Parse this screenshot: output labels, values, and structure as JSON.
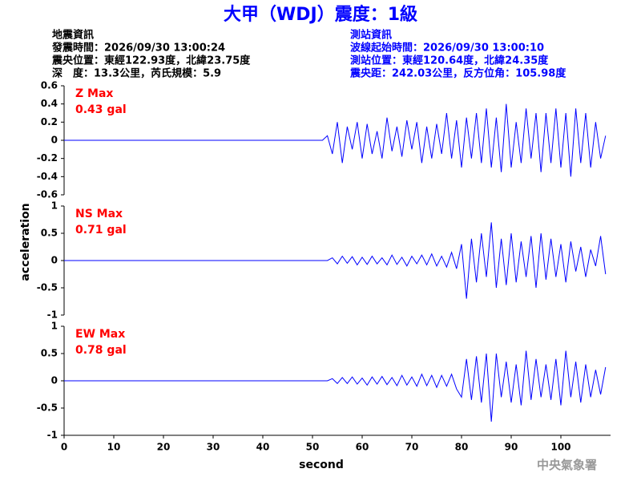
{
  "header": {
    "title": "大甲（WDJ）震度：1級",
    "left": [
      "地震資訊",
      "發震時間：2026/09/30 13:00:24",
      "震央位置：東經122.93度，北緯23.75度",
      "深　度：13.3公里，芮氏規模：5.9"
    ],
    "right": [
      "測站資訊",
      "波線起始時間：2026/09/30 13:00:10",
      "測站位置：東經120.64度，北緯24.35度",
      "震央距：242.03公里，反方位角：105.98度"
    ],
    "watermark": "中央氣象署"
  },
  "chart_data": [
    {
      "type": "line",
      "annotation": [
        "Z Max",
        "0.43 gal"
      ],
      "annotation_color": "#ff0000",
      "x": [
        0,
        1,
        2,
        3,
        4,
        5,
        6,
        7,
        8,
        9,
        10,
        11,
        12,
        13,
        14,
        15,
        16,
        17,
        18,
        19,
        20,
        21,
        22,
        23,
        24,
        25,
        26,
        27,
        28,
        29,
        30,
        31,
        32,
        33,
        34,
        35,
        36,
        37,
        38,
        39,
        40,
        41,
        42,
        43,
        44,
        45,
        46,
        47,
        48,
        49,
        50,
        51,
        52,
        53,
        54,
        55,
        56,
        57,
        58,
        59,
        60,
        61,
        62,
        63,
        64,
        65,
        66,
        67,
        68,
        69,
        70,
        71,
        72,
        73,
        74,
        75,
        76,
        77,
        78,
        79,
        80,
        81,
        82,
        83,
        84,
        85,
        86,
        87,
        88,
        89,
        90,
        91,
        92,
        93,
        94,
        95,
        96,
        97,
        98,
        99,
        100,
        101,
        102,
        103,
        104,
        105,
        106,
        107,
        108,
        109
      ],
      "series": [
        {
          "name": "Z",
          "color": "#0000ff",
          "values": [
            0,
            0,
            0,
            0,
            0,
            0,
            0,
            0,
            0,
            0,
            0,
            0,
            0,
            0,
            0,
            0,
            0,
            0,
            0,
            0,
            0,
            0,
            0,
            0,
            0,
            0,
            0,
            0,
            0,
            0,
            0,
            0,
            0,
            0,
            0,
            0,
            0,
            0,
            0,
            0,
            0,
            0,
            0,
            0,
            0,
            0,
            0,
            0,
            0,
            0,
            0,
            0,
            0,
            0.05,
            -0.15,
            0.2,
            -0.25,
            0.15,
            -0.1,
            0.2,
            -0.2,
            0.18,
            -0.15,
            0.1,
            -0.2,
            0.25,
            -0.12,
            0.15,
            -0.18,
            0.22,
            -0.1,
            0.2,
            -0.25,
            0.15,
            -0.2,
            0.18,
            -0.15,
            0.3,
            -0.2,
            0.22,
            -0.3,
            0.25,
            -0.2,
            0.3,
            -0.25,
            0.35,
            -0.3,
            0.25,
            -0.35,
            0.4,
            -0.3,
            0.2,
            -0.25,
            0.35,
            -0.2,
            0.3,
            -0.35,
            0.3,
            -0.25,
            0.35,
            -0.3,
            0.3,
            -0.4,
            0.35,
            -0.25,
            0.3,
            -0.3,
            0.2,
            -0.2,
            0.05
          ]
        }
      ],
      "xlim": [
        0,
        110
      ],
      "ylim": [
        -0.6,
        0.6
      ],
      "yticks": [
        0.6,
        0.4,
        0.2,
        0,
        -0.2,
        -0.4,
        -0.6
      ]
    },
    {
      "type": "line",
      "annotation": [
        "NS Max",
        "0.71 gal"
      ],
      "annotation_color": "#ff0000",
      "ylabel": "acceleration",
      "x": [
        0,
        1,
        2,
        3,
        4,
        5,
        6,
        7,
        8,
        9,
        10,
        11,
        12,
        13,
        14,
        15,
        16,
        17,
        18,
        19,
        20,
        21,
        22,
        23,
        24,
        25,
        26,
        27,
        28,
        29,
        30,
        31,
        32,
        33,
        34,
        35,
        36,
        37,
        38,
        39,
        40,
        41,
        42,
        43,
        44,
        45,
        46,
        47,
        48,
        49,
        50,
        51,
        52,
        53,
        54,
        55,
        56,
        57,
        58,
        59,
        60,
        61,
        62,
        63,
        64,
        65,
        66,
        67,
        68,
        69,
        70,
        71,
        72,
        73,
        74,
        75,
        76,
        77,
        78,
        79,
        80,
        81,
        82,
        83,
        84,
        85,
        86,
        87,
        88,
        89,
        90,
        91,
        92,
        93,
        94,
        95,
        96,
        97,
        98,
        99,
        100,
        101,
        102,
        103,
        104,
        105,
        106,
        107,
        108,
        109
      ],
      "series": [
        {
          "name": "NS",
          "color": "#0000ff",
          "values": [
            0,
            0,
            0,
            0,
            0,
            0,
            0,
            0,
            0,
            0,
            0,
            0,
            0,
            0,
            0,
            0,
            0,
            0,
            0,
            0,
            0,
            0,
            0,
            0,
            0,
            0,
            0,
            0,
            0,
            0,
            0,
            0,
            0,
            0,
            0,
            0,
            0,
            0,
            0,
            0,
            0,
            0,
            0,
            0,
            0,
            0,
            0,
            0,
            0,
            0,
            0,
            0,
            0,
            0,
            0.05,
            -0.06,
            0.08,
            -0.05,
            0.07,
            -0.08,
            0.06,
            -0.07,
            0.08,
            -0.06,
            0.05,
            -0.08,
            0.1,
            -0.07,
            0.06,
            -0.1,
            0.08,
            -0.06,
            0.1,
            -0.08,
            0.12,
            -0.1,
            0.08,
            -0.12,
            0.15,
            -0.15,
            0.3,
            -0.7,
            0.4,
            -0.4,
            0.5,
            -0.3,
            0.7,
            -0.5,
            0.4,
            -0.45,
            0.5,
            -0.4,
            0.35,
            -0.3,
            0.45,
            -0.5,
            0.5,
            -0.35,
            0.4,
            -0.3,
            0.3,
            -0.4,
            0.35,
            -0.2,
            0.25,
            -0.3,
            0.2,
            -0.1,
            0.45,
            -0.25
          ]
        }
      ],
      "xlim": [
        0,
        110
      ],
      "ylim": [
        -1,
        1
      ],
      "yticks": [
        1,
        0.5,
        0,
        -0.5,
        -1
      ]
    },
    {
      "type": "line",
      "annotation": [
        "EW Max",
        "0.78 gal"
      ],
      "annotation_color": "#ff0000",
      "xlabel": "second",
      "x": [
        0,
        1,
        2,
        3,
        4,
        5,
        6,
        7,
        8,
        9,
        10,
        11,
        12,
        13,
        14,
        15,
        16,
        17,
        18,
        19,
        20,
        21,
        22,
        23,
        24,
        25,
        26,
        27,
        28,
        29,
        30,
        31,
        32,
        33,
        34,
        35,
        36,
        37,
        38,
        39,
        40,
        41,
        42,
        43,
        44,
        45,
        46,
        47,
        48,
        49,
        50,
        51,
        52,
        53,
        54,
        55,
        56,
        57,
        58,
        59,
        60,
        61,
        62,
        63,
        64,
        65,
        66,
        67,
        68,
        69,
        70,
        71,
        72,
        73,
        74,
        75,
        76,
        77,
        78,
        79,
        80,
        81,
        82,
        83,
        84,
        85,
        86,
        87,
        88,
        89,
        90,
        91,
        92,
        93,
        94,
        95,
        96,
        97,
        98,
        99,
        100,
        101,
        102,
        103,
        104,
        105,
        106,
        107,
        108,
        109
      ],
      "series": [
        {
          "name": "EW",
          "color": "#0000ff",
          "values": [
            0,
            0,
            0,
            0,
            0,
            0,
            0,
            0,
            0,
            0,
            0,
            0,
            0,
            0,
            0,
            0,
            0,
            0,
            0,
            0,
            0,
            0,
            0,
            0,
            0,
            0,
            0,
            0,
            0,
            0,
            0,
            0,
            0,
            0,
            0,
            0,
            0,
            0,
            0,
            0,
            0,
            0,
            0,
            0,
            0,
            0,
            0,
            0,
            0,
            0,
            0,
            0,
            0,
            0,
            0.04,
            -0.05,
            0.06,
            -0.05,
            0.07,
            -0.06,
            0.05,
            -0.08,
            0.07,
            -0.06,
            0.08,
            -0.07,
            0.06,
            -0.09,
            0.1,
            -0.08,
            0.07,
            -0.1,
            0.12,
            -0.09,
            0.1,
            -0.12,
            0.1,
            -0.1,
            0.12,
            -0.15,
            -0.3,
            0.4,
            -0.35,
            0.45,
            -0.4,
            0.5,
            -0.75,
            0.5,
            -0.3,
            0.35,
            -0.4,
            0.3,
            -0.45,
            0.55,
            -0.35,
            0.4,
            -0.3,
            0.3,
            -0.35,
            0.4,
            -0.45,
            0.55,
            -0.3,
            0.35,
            -0.4,
            0.3,
            -0.3,
            0.2,
            -0.25,
            0.25
          ]
        }
      ],
      "xlim": [
        0,
        110
      ],
      "ylim": [
        -1,
        1
      ],
      "yticks": [
        1,
        0.5,
        0,
        -0.5,
        -1
      ],
      "xticks": [
        0,
        10,
        20,
        30,
        40,
        50,
        60,
        70,
        80,
        90,
        100
      ]
    }
  ]
}
